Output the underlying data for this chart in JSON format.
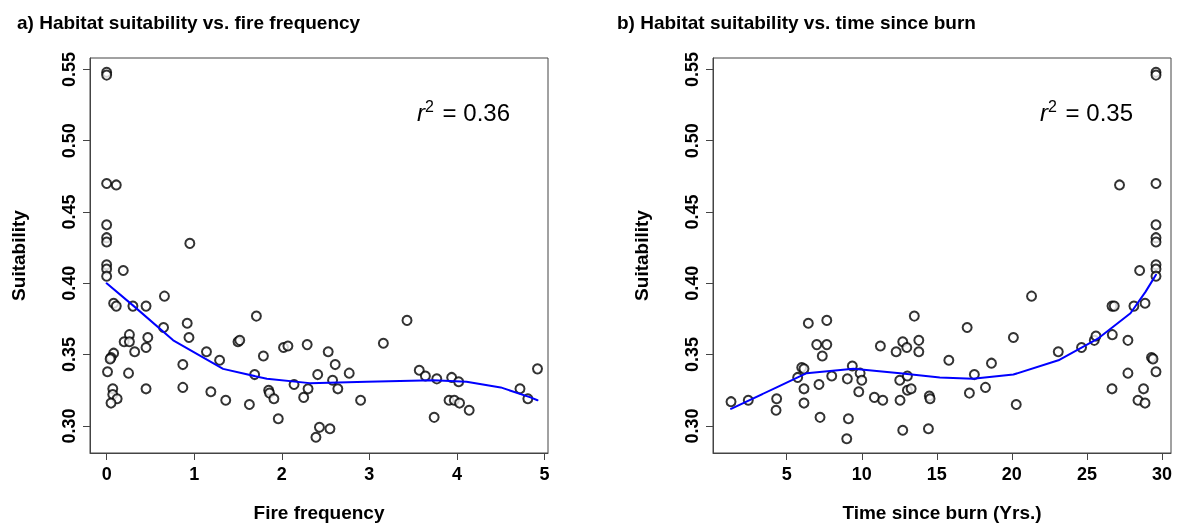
{
  "chart_data": [
    {
      "type": "scatter",
      "title": "a) Habitat suitability vs. fire frequency",
      "xlabel": "Fire frequency",
      "ylabel": "Suitability",
      "annotations": [
        "r$^{2}$ = 0.36"
      ],
      "marker": "circle",
      "grid": false,
      "xlim": [
        -0.19,
        5.04
      ],
      "xticks": [
        0,
        1,
        2,
        3,
        4,
        5
      ],
      "ylim": [
        0.281,
        0.558
      ],
      "yticks": [
        {
          "value": 0.3,
          "label": "0.30"
        },
        0.35,
        {
          "value": 0.4,
          "label": "0.40"
        },
        0.45,
        {
          "value": 0.5,
          "label": "0.50"
        },
        0.55
      ],
      "series": [
        {
          "color": "#000000",
          "x": [
            0,
            0,
            0,
            0.11,
            0,
            0,
            0,
            0.95,
            0,
            0,
            0,
            0.19,
            0.08,
            0.11,
            0.3,
            0.45,
            0.66,
            0.65,
            0.92,
            0.94,
            0.47,
            0.45,
            0.26,
            0.2,
            0.26,
            0.32,
            0.08,
            0.05,
            0.04,
            0.01,
            0.25,
            0.07,
            0.07,
            0.12,
            0.05,
            0.45,
            0.87,
            0.87,
            1.14,
            1.29,
            1.19,
            1.36,
            1.5,
            1.52,
            1.71,
            1.79,
            1.69,
            1.63,
            1.85,
            1.86,
            1.91,
            1.96,
            2.02,
            2.07,
            2.14,
            2.25,
            2.29,
            2.53,
            2.61,
            2.41,
            2.58,
            2.3,
            2.64,
            2.77,
            2.9,
            2.43,
            2.39,
            2.55,
            3.16,
            3.43,
            3.57,
            3.64,
            3.77,
            3.94,
            4.02,
            3.91,
            3.97,
            4.03,
            4.14,
            3.74,
            4.72,
            4.81,
            4.92
          ],
          "values": [
            0.548,
            0.546,
            0.47,
            0.469,
            0.441,
            0.432,
            0.429,
            0.428,
            0.413,
            0.41,
            0.405,
            0.409,
            0.386,
            0.384,
            0.384,
            0.384,
            0.391,
            0.369,
            0.372,
            0.362,
            0.362,
            0.355,
            0.364,
            0.359,
            0.359,
            0.352,
            0.351,
            0.348,
            0.347,
            0.338,
            0.337,
            0.326,
            0.322,
            0.319,
            0.316,
            0.326,
            0.343,
            0.327,
            0.352,
            0.346,
            0.324,
            0.318,
            0.359,
            0.36,
            0.377,
            0.349,
            0.336,
            0.315,
            0.325,
            0.323,
            0.319,
            0.305,
            0.355,
            0.356,
            0.329,
            0.32,
            0.357,
            0.352,
            0.343,
            0.336,
            0.332,
            0.326,
            0.326,
            0.337,
            0.318,
            0.299,
            0.292,
            0.298,
            0.358,
            0.374,
            0.339,
            0.335,
            0.333,
            0.334,
            0.331,
            0.318,
            0.318,
            0.316,
            0.311,
            0.306,
            0.326,
            0.319,
            0.34
          ]
        },
        {
          "type": "line",
          "color": "#0000ff",
          "marker": "none",
          "line_style": "solid",
          "x": [
            0,
            0.31,
            0.76,
            1.33,
            1.83,
            2.32,
            2.97,
            3.73,
            4.11,
            4.5,
            4.84,
            4.92
          ],
          "values": [
            0.4,
            0.384,
            0.36,
            0.34,
            0.333,
            0.33,
            0.331,
            0.332,
            0.331,
            0.327,
            0.32,
            0.318
          ]
        }
      ]
    },
    {
      "type": "scatter",
      "title": "b) Habitat suitability vs. time since burn",
      "xlabel": "Time since burn (Yrs.)",
      "ylabel": "Suitability",
      "annotations": [
        "r$^{2}$ = 0.35"
      ],
      "marker": "circle",
      "grid": false,
      "xlim": [
        0.09,
        30.6
      ],
      "xticks": [
        5,
        10,
        15,
        20,
        25,
        30
      ],
      "ylim": [
        0.281,
        0.558
      ],
      "yticks": [
        {
          "value": 0.3,
          "label": "0.30"
        },
        0.35,
        {
          "value": 0.4,
          "label": "0.40"
        },
        0.45,
        {
          "value": 0.5,
          "label": "0.50"
        },
        0.55
      ],
      "series": [
        {
          "color": "#000000",
          "x": [
            1.29,
            2.44,
            4.33,
            4.29,
            5.73,
            6.0,
            6.15,
            6.15,
            6.15,
            6.44,
            7.0,
            7.67,
            7.67,
            7.37,
            7.15,
            8.0,
            7.22,
            9.04,
            9.37,
            9.89,
            10.0,
            9.8,
            9.11,
            9.0,
            10.84,
            11.4,
            11.24,
            12.29,
            12.73,
            13.0,
            13.5,
            13.8,
            13.8,
            12.53,
            13.04,
            13.04,
            13.29,
            12.55,
            12.73,
            14.5,
            14.55,
            14.44,
            15.8,
            17.02,
            17.5,
            17.17,
            18.24,
            18.64,
            20.1,
            20.29,
            21.31,
            23.09,
            24.64,
            25.49,
            25.6,
            26.67,
            26.82,
            26.69,
            26.67,
            27.17,
            28.51,
            28.13,
            27.73,
            27.73,
            28.87,
            28.77,
            28.4,
            28.87,
            29.6,
            29.6,
            29.6,
            29.6,
            29.6,
            29.6,
            29.6,
            29.6,
            29.6,
            29.6,
            29.3,
            29.4
          ],
          "values": [
            0.317,
            0.318,
            0.319,
            0.311,
            0.334,
            0.341,
            0.34,
            0.326,
            0.316,
            0.372,
            0.357,
            0.374,
            0.357,
            0.349,
            0.329,
            0.335,
            0.306,
            0.333,
            0.342,
            0.337,
            0.332,
            0.324,
            0.305,
            0.291,
            0.32,
            0.318,
            0.356,
            0.352,
            0.359,
            0.355,
            0.377,
            0.36,
            0.352,
            0.332,
            0.335,
            0.325,
            0.326,
            0.318,
            0.297,
            0.321,
            0.319,
            0.298,
            0.346,
            0.369,
            0.336,
            0.323,
            0.327,
            0.344,
            0.362,
            0.315,
            0.391,
            0.352,
            0.355,
            0.36,
            0.363,
            0.384,
            0.384,
            0.364,
            0.326,
            0.469,
            0.409,
            0.384,
            0.36,
            0.337,
            0.386,
            0.326,
            0.318,
            0.316,
            0.548,
            0.546,
            0.47,
            0.441,
            0.432,
            0.429,
            0.413,
            0.41,
            0.405,
            0.338,
            0.348,
            0.347
          ]
        },
        {
          "type": "line",
          "color": "#0000ff",
          "marker": "none",
          "line_style": "solid",
          "x": [
            1.29,
            4.33,
            6.33,
            9.44,
            12.55,
            15.2,
            17.4,
            20.1,
            23.1,
            25.7,
            27.9,
            28.9,
            29.6
          ],
          "values": [
            0.312,
            0.327,
            0.337,
            0.34,
            0.337,
            0.334,
            0.333,
            0.336,
            0.346,
            0.361,
            0.379,
            0.394,
            0.406
          ]
        }
      ]
    }
  ]
}
